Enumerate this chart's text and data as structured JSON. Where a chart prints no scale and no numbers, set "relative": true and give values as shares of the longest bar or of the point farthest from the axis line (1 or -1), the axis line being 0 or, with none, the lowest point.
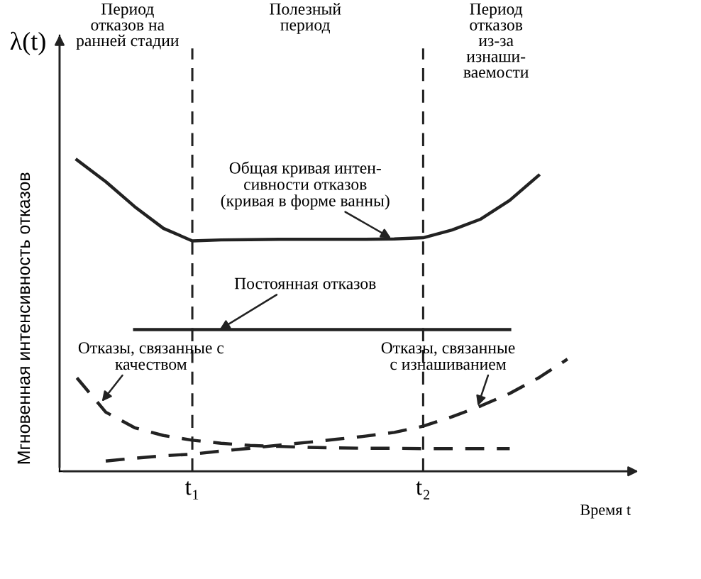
{
  "chart_data": {
    "type": "line",
    "relative": true,
    "xlabel": "Время t",
    "ylabel": "Мгновенная интенсивность отказов",
    "categories": [
      null,
      null,
      null,
      null,
      "t₁",
      null,
      null,
      null,
      null,
      null,
      null,
      null,
      "t₂",
      null,
      null,
      null,
      null,
      null
    ],
    "series": [
      {
        "color": "#222222",
        "line_style": "solid",
        "values": [
          1,
          0.93,
          0.85,
          0.78,
          0.74,
          0.743,
          0.744,
          0.745,
          0.745,
          0.745,
          0.745,
          0.746,
          0.75,
          0.775,
          0.81,
          0.87,
          0.95,
          null
        ]
      },
      {
        "color": "#222222",
        "line_style": "solid",
        "values": [
          null,
          null,
          0.455,
          0.455,
          0.455,
          0.455,
          0.455,
          0.455,
          0.455,
          0.455,
          0.455,
          0.455,
          0.455,
          0.455,
          0.455,
          0.455,
          null,
          null
        ]
      },
      {
        "color": "#222222",
        "line_style": "dashed",
        "values": [
          0.3,
          0.19,
          0.14,
          0.115,
          0.1,
          0.09,
          0.083,
          0.08,
          0.077,
          0.075,
          0.074,
          0.074,
          0.073,
          0.073,
          0.073,
          0.073,
          null,
          null
        ]
      },
      {
        "color": "#222222",
        "line_style": "dashed",
        "values": [
          null,
          0.033,
          0.042,
          0.05,
          0.055,
          0.065,
          0.074,
          0.084,
          0.093,
          0.103,
          0.113,
          0.125,
          0.145,
          0.175,
          0.21,
          0.25,
          0.3,
          0.36
        ]
      }
    ],
    "ref_lines": [
      {
        "axis": "x",
        "value": "t₁",
        "line_style": "dashed",
        "color": "#222222"
      },
      {
        "axis": "x",
        "value": "t₂",
        "line_style": "dashed",
        "color": "#222222"
      }
    ],
    "annotations": [
      "λ(t)",
      "Период\nотказов на\nранней стадии",
      "Полезный\nпериод",
      "Период\nотказов\nиз-за\nизнаши-\nваемости",
      "Общая кривая интен-\nсивности отказов\n(кривая в форме ванны)",
      "Постоянная отказов",
      "Отказы, связанные с\nкачеством",
      "Отказы, связанные\nс изнашиванием"
    ]
  }
}
